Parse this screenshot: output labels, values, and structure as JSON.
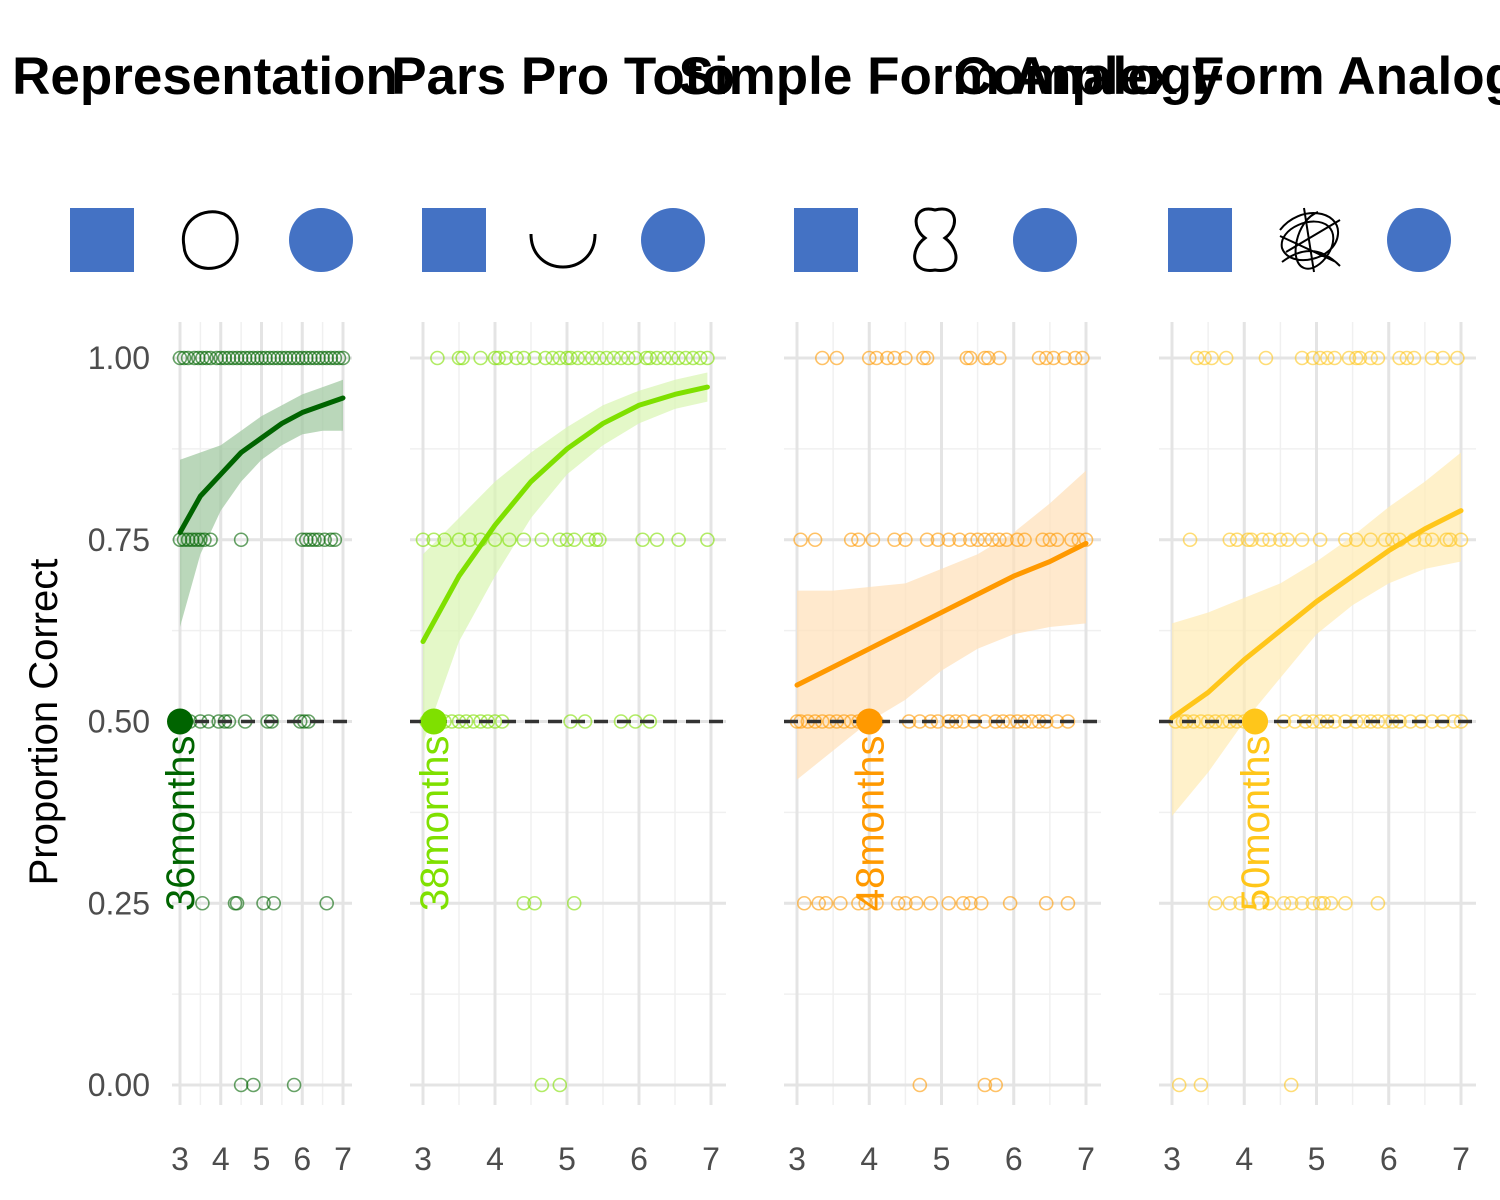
{
  "chart_data": {
    "type": "scatter",
    "ylabel": "Proportion Correct",
    "xlabel": "",
    "xlim": [
      3,
      7
    ],
    "ylim": [
      0,
      1
    ],
    "xticks": [
      "3",
      "4",
      "5",
      "6",
      "7"
    ],
    "yticks": [
      "0.00",
      "0.25",
      "0.50",
      "0.75",
      "1.00"
    ],
    "yvalues": [
      0,
      0.25,
      0.5,
      0.75,
      1.0
    ],
    "reference_line": 0.5,
    "grid": true,
    "shapes": {
      "left": "square",
      "right": "circle",
      "shape_color": "#4472C4"
    },
    "panels": [
      {
        "title": "Representation",
        "middle_icon": "circle-outline-icon",
        "color": "#006400",
        "fill": "#9CC69C",
        "annotation": "36months",
        "threshold_x": 3.0,
        "fit": {
          "x": [
            3.0,
            3.5,
            4.0,
            4.5,
            5.0,
            5.5,
            6.0,
            6.5,
            7.0
          ],
          "y": [
            0.76,
            0.81,
            0.84,
            0.87,
            0.89,
            0.91,
            0.925,
            0.935,
            0.945
          ],
          "lo": [
            0.63,
            0.73,
            0.79,
            0.83,
            0.86,
            0.88,
            0.895,
            0.9,
            0.9
          ],
          "hi": [
            0.86,
            0.87,
            0.88,
            0.9,
            0.92,
            0.935,
            0.95,
            0.96,
            0.97
          ]
        },
        "points": [
          {
            "y": 1.0,
            "x": [
              3.0,
              3.1,
              3.2,
              3.35,
              3.45,
              3.55,
              3.65,
              3.75,
              3.9,
              4.0,
              4.1,
              4.2,
              4.3,
              4.4,
              4.5,
              4.6,
              4.7,
              4.8,
              4.9,
              5.0,
              5.1,
              5.2,
              5.3,
              5.4,
              5.5,
              5.6,
              5.7,
              5.8,
              5.9,
              6.0,
              6.1,
              6.2,
              6.3,
              6.4,
              6.5,
              6.6,
              6.7,
              6.8,
              6.9,
              7.0
            ]
          },
          {
            "y": 0.75,
            "x": [
              3.0,
              3.1,
              3.2,
              3.3,
              3.4,
              3.5,
              3.6,
              3.75,
              4.5,
              6.0,
              6.1,
              6.2,
              6.3,
              6.4,
              6.55,
              6.7,
              6.8
            ]
          },
          {
            "y": 0.5,
            "x": [
              3.0,
              3.05,
              3.1,
              3.15,
              3.25,
              3.5,
              3.7,
              3.95,
              4.1,
              4.2,
              4.6,
              5.15,
              5.25,
              5.95,
              6.05,
              6.15
            ]
          },
          {
            "y": 0.25,
            "x": [
              3.55,
              4.35,
              4.4,
              5.05,
              5.3,
              6.6
            ]
          },
          {
            "y": 0.0,
            "x": [
              4.5,
              4.8,
              5.8
            ]
          }
        ]
      },
      {
        "title": "Pars Pro Toto",
        "middle_icon": "arc-outline-icon",
        "color": "#7FE000",
        "fill": "#D9F5B0",
        "annotation": "38months",
        "threshold_x": 3.15,
        "fit": {
          "x": [
            3.0,
            3.5,
            4.0,
            4.5,
            5.0,
            5.5,
            6.0,
            6.5,
            6.95
          ],
          "y": [
            0.61,
            0.7,
            0.77,
            0.83,
            0.875,
            0.91,
            0.935,
            0.95,
            0.96
          ],
          "lo": [
            0.47,
            0.61,
            0.7,
            0.78,
            0.84,
            0.88,
            0.91,
            0.93,
            0.94
          ],
          "hi": [
            0.73,
            0.78,
            0.83,
            0.87,
            0.905,
            0.935,
            0.955,
            0.97,
            0.98
          ]
        },
        "points": [
          {
            "y": 1.0,
            "x": [
              3.2,
              3.5,
              3.55,
              3.8,
              4.0,
              4.05,
              4.15,
              4.3,
              4.4,
              4.55,
              4.7,
              4.8,
              4.9,
              5.0,
              5.05,
              5.15,
              5.25,
              5.35,
              5.45,
              5.55,
              5.65,
              5.75,
              5.85,
              5.95,
              6.1,
              6.15,
              6.25,
              6.35,
              6.45,
              6.55,
              6.65,
              6.75,
              6.85,
              6.95
            ]
          },
          {
            "y": 0.75,
            "x": [
              3.0,
              3.15,
              3.3,
              3.5,
              3.65,
              3.8,
              4.0,
              4.2,
              4.4,
              4.65,
              4.9,
              5.0,
              5.1,
              5.3,
              5.4,
              5.45,
              6.05,
              6.25,
              6.55,
              6.95
            ]
          },
          {
            "y": 0.5,
            "x": [
              3.05,
              3.15,
              3.2,
              3.3,
              3.4,
              3.5,
              3.6,
              3.7,
              3.8,
              3.9,
              4.0,
              4.1,
              5.05,
              5.25,
              5.75,
              5.95,
              6.15
            ]
          },
          {
            "y": 0.25,
            "x": [
              4.4,
              4.55,
              5.1
            ]
          },
          {
            "y": 0.0,
            "x": [
              4.65,
              4.9
            ]
          }
        ]
      },
      {
        "title": "Simple Form Analogy",
        "middle_icon": "peanut-outline-icon",
        "color": "#FF9900",
        "fill": "#FFE0B8",
        "annotation": "48months",
        "threshold_x": 4.0,
        "fit": {
          "x": [
            3.0,
            3.5,
            4.0,
            4.5,
            5.0,
            5.5,
            6.0,
            6.5,
            7.0
          ],
          "y": [
            0.55,
            0.575,
            0.6,
            0.625,
            0.65,
            0.675,
            0.7,
            0.72,
            0.745
          ],
          "lo": [
            0.42,
            0.46,
            0.5,
            0.53,
            0.57,
            0.6,
            0.62,
            0.63,
            0.635
          ],
          "hi": [
            0.68,
            0.68,
            0.685,
            0.69,
            0.71,
            0.73,
            0.76,
            0.8,
            0.845
          ]
        },
        "points": [
          {
            "y": 1.0,
            "x": [
              3.35,
              3.55,
              4.0,
              4.1,
              4.25,
              4.35,
              4.5,
              4.75,
              4.8,
              5.35,
              5.4,
              5.6,
              5.65,
              5.8,
              6.35,
              6.45,
              6.55,
              6.7,
              6.85,
              6.95
            ]
          },
          {
            "y": 0.75,
            "x": [
              3.05,
              3.25,
              3.75,
              3.85,
              4.05,
              4.35,
              4.5,
              4.8,
              4.95,
              5.1,
              5.25,
              5.4,
              5.5,
              5.6,
              5.7,
              5.8,
              5.9,
              6.05,
              6.15,
              6.4,
              6.5,
              6.6,
              6.8,
              6.9,
              7.0
            ]
          },
          {
            "y": 0.5,
            "x": [
              3.0,
              3.05,
              3.15,
              3.25,
              3.35,
              3.45,
              3.55,
              3.65,
              3.75,
              3.85,
              3.95,
              4.05,
              4.1,
              4.55,
              4.7,
              4.85,
              4.95,
              5.1,
              5.2,
              5.3,
              5.45,
              5.6,
              5.75,
              5.85,
              5.95,
              6.05,
              6.15,
              6.25,
              6.35,
              6.45,
              6.6,
              6.75
            ]
          },
          {
            "y": 0.25,
            "x": [
              3.1,
              3.3,
              3.4,
              3.6,
              3.85,
              3.95,
              4.1,
              4.4,
              4.5,
              4.65,
              4.85,
              5.1,
              5.3,
              5.4,
              5.55,
              5.95,
              6.45,
              6.75
            ]
          },
          {
            "y": 0.0,
            "x": [
              4.7,
              5.6,
              5.75
            ]
          }
        ]
      },
      {
        "title": "Complex Form Analogy",
        "middle_icon": "scribble-outline-icon",
        "color": "#FFC61A",
        "fill": "#FFEBB3",
        "annotation": "50months",
        "threshold_x": 4.15,
        "fit": {
          "x": [
            3.0,
            3.5,
            4.0,
            4.5,
            5.0,
            5.5,
            6.0,
            6.5,
            7.0
          ],
          "y": [
            0.505,
            0.54,
            0.585,
            0.625,
            0.665,
            0.7,
            0.735,
            0.765,
            0.79
          ],
          "lo": [
            0.37,
            0.43,
            0.5,
            0.56,
            0.62,
            0.66,
            0.69,
            0.71,
            0.72
          ],
          "hi": [
            0.635,
            0.65,
            0.67,
            0.69,
            0.72,
            0.755,
            0.795,
            0.83,
            0.87
          ]
        },
        "points": [
          {
            "y": 1.0,
            "x": [
              3.35,
              3.45,
              3.55,
              3.75,
              4.3,
              4.8,
              4.95,
              5.05,
              5.15,
              5.25,
              5.45,
              5.55,
              5.6,
              5.75,
              5.85,
              6.15,
              6.25,
              6.35,
              6.6,
              6.75,
              6.95
            ]
          },
          {
            "y": 0.75,
            "x": [
              3.25,
              3.8,
              3.9,
              4.05,
              4.1,
              4.25,
              4.35,
              4.5,
              4.6,
              4.8,
              5.05,
              5.4,
              5.55,
              5.75,
              5.95,
              6.05,
              6.15,
              6.35,
              6.5,
              6.6,
              6.8,
              6.85,
              7.0
            ]
          },
          {
            "y": 0.5,
            "x": [
              3.05,
              3.15,
              3.2,
              3.3,
              3.4,
              3.5,
              3.6,
              3.7,
              3.8,
              3.9,
              4.0,
              4.55,
              4.7,
              4.85,
              4.95,
              5.05,
              5.15,
              5.25,
              5.4,
              5.55,
              5.65,
              5.75,
              5.85,
              5.95,
              6.05,
              6.15,
              6.3,
              6.45,
              6.6,
              6.75,
              6.9,
              7.0
            ]
          },
          {
            "y": 0.25,
            "x": [
              3.6,
              3.8,
              3.95,
              4.2,
              4.35,
              4.55,
              4.65,
              4.8,
              4.95,
              5.05,
              5.1,
              5.2,
              5.4,
              5.85
            ]
          },
          {
            "y": 0.0,
            "x": [
              3.1,
              3.4,
              4.65
            ]
          }
        ]
      }
    ]
  }
}
